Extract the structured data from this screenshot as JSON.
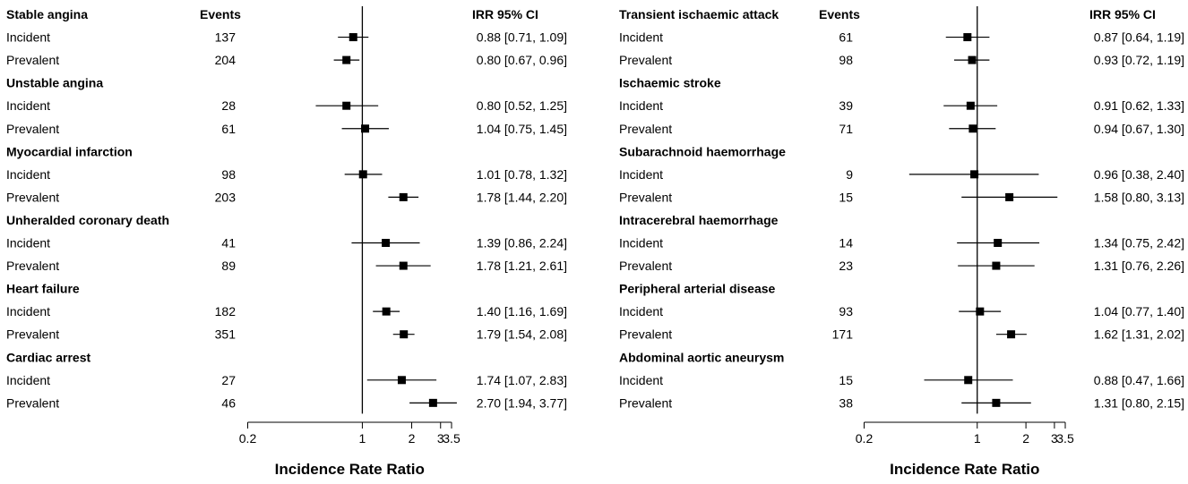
{
  "chart_data": [
    {
      "type": "forest",
      "xlabel": "Incidence Rate Ratio",
      "xscale": "log",
      "xlim": [
        0.2,
        3.5
      ],
      "xticks": [
        0.2,
        1,
        2,
        3,
        3.5
      ],
      "reference_line": 1,
      "column_headers": {
        "events": "Events",
        "estimate": "IRR    95% CI"
      },
      "groups": [
        {
          "title": "Stable angina",
          "rows": [
            {
              "label": "Incident",
              "events": "137",
              "irr": 0.88,
              "lo": 0.71,
              "hi": 1.09,
              "text": "0.88 [0.71, 1.09]"
            },
            {
              "label": "Prevalent",
              "events": "204",
              "irr": 0.8,
              "lo": 0.67,
              "hi": 0.96,
              "text": "0.80 [0.67, 0.96]"
            }
          ]
        },
        {
          "title": "Unstable angina",
          "rows": [
            {
              "label": "Incident",
              "events": "28",
              "irr": 0.8,
              "lo": 0.52,
              "hi": 1.25,
              "text": "0.80 [0.52, 1.25]"
            },
            {
              "label": "Prevalent",
              "events": "61",
              "irr": 1.04,
              "lo": 0.75,
              "hi": 1.45,
              "text": "1.04 [0.75, 1.45]"
            }
          ]
        },
        {
          "title": "Myocardial infarction",
          "rows": [
            {
              "label": "Incident",
              "events": "98",
              "irr": 1.01,
              "lo": 0.78,
              "hi": 1.32,
              "text": "1.01 [0.78, 1.32]"
            },
            {
              "label": "Prevalent",
              "events": "203",
              "irr": 1.78,
              "lo": 1.44,
              "hi": 2.2,
              "text": "1.78 [1.44, 2.20]"
            }
          ]
        },
        {
          "title": "Unheralded coronary death",
          "rows": [
            {
              "label": "Incident",
              "events": "41",
              "irr": 1.39,
              "lo": 0.86,
              "hi": 2.24,
              "text": "1.39 [0.86, 2.24]"
            },
            {
              "label": "Prevalent",
              "events": "89",
              "irr": 1.78,
              "lo": 1.21,
              "hi": 2.61,
              "text": "1.78 [1.21, 2.61]"
            }
          ]
        },
        {
          "title": "Heart failure",
          "rows": [
            {
              "label": "Incident",
              "events": "182",
              "irr": 1.4,
              "lo": 1.16,
              "hi": 1.69,
              "text": "1.40 [1.16, 1.69]"
            },
            {
              "label": "Prevalent",
              "events": "351",
              "irr": 1.79,
              "lo": 1.54,
              "hi": 2.08,
              "text": "1.79 [1.54, 2.08]"
            }
          ]
        },
        {
          "title": "Cardiac arrest",
          "rows": [
            {
              "label": "Incident",
              "events": "27",
              "irr": 1.74,
              "lo": 1.07,
              "hi": 2.83,
              "text": "1.74 [1.07, 2.83]"
            },
            {
              "label": "Prevalent",
              "events": "46",
              "irr": 2.7,
              "lo": 1.94,
              "hi": 3.77,
              "text": "2.70 [1.94, 3.77]"
            }
          ]
        }
      ]
    },
    {
      "type": "forest",
      "xlabel": "Incidence Rate Ratio",
      "xscale": "log",
      "xlim": [
        0.2,
        3.5
      ],
      "xticks": [
        0.2,
        1,
        2,
        3,
        3.5
      ],
      "reference_line": 1,
      "column_headers": {
        "events": "Events",
        "estimate": "IRR    95% CI"
      },
      "groups": [
        {
          "title": "Transient ischaemic attack",
          "rows": [
            {
              "label": "Incident",
              "events": "61",
              "irr": 0.87,
              "lo": 0.64,
              "hi": 1.19,
              "text": "0.87 [0.64, 1.19]"
            },
            {
              "label": "Prevalent",
              "events": "98",
              "irr": 0.93,
              "lo": 0.72,
              "hi": 1.19,
              "text": "0.93 [0.72, 1.19]"
            }
          ]
        },
        {
          "title": "Ischaemic stroke",
          "rows": [
            {
              "label": "Incident",
              "events": "39",
              "irr": 0.91,
              "lo": 0.62,
              "hi": 1.33,
              "text": "0.91 [0.62, 1.33]"
            },
            {
              "label": "Prevalent",
              "events": "71",
              "irr": 0.94,
              "lo": 0.67,
              "hi": 1.3,
              "text": "0.94 [0.67, 1.30]"
            }
          ]
        },
        {
          "title": "Subarachnoid haemorrhage",
          "rows": [
            {
              "label": "Incident",
              "events": "9",
              "irr": 0.96,
              "lo": 0.38,
              "hi": 2.4,
              "text": "0.96 [0.38, 2.40]"
            },
            {
              "label": "Prevalent",
              "events": "15",
              "irr": 1.58,
              "lo": 0.8,
              "hi": 3.13,
              "text": "1.58 [0.80, 3.13]"
            }
          ]
        },
        {
          "title": "Intracerebral haemorrhage",
          "rows": [
            {
              "label": "Incident",
              "events": "14",
              "irr": 1.34,
              "lo": 0.75,
              "hi": 2.42,
              "text": "1.34 [0.75, 2.42]"
            },
            {
              "label": "Prevalent",
              "events": "23",
              "irr": 1.31,
              "lo": 0.76,
              "hi": 2.26,
              "text": "1.31 [0.76, 2.26]"
            }
          ]
        },
        {
          "title": "Peripheral arterial disease",
          "rows": [
            {
              "label": "Incident",
              "events": "93",
              "irr": 1.04,
              "lo": 0.77,
              "hi": 1.4,
              "text": "1.04 [0.77, 1.40]"
            },
            {
              "label": "Prevalent",
              "events": "171",
              "irr": 1.62,
              "lo": 1.31,
              "hi": 2.02,
              "text": "1.62 [1.31, 2.02]"
            }
          ]
        },
        {
          "title": "Abdominal aortic aneurysm",
          "rows": [
            {
              "label": "Incident",
              "events": "15",
              "irr": 0.88,
              "lo": 0.47,
              "hi": 1.66,
              "text": "0.88 [0.47, 1.66]"
            },
            {
              "label": "Prevalent",
              "events": "38",
              "irr": 1.31,
              "lo": 0.8,
              "hi": 2.15,
              "text": "1.31 [0.80, 2.15]"
            }
          ]
        }
      ]
    }
  ]
}
